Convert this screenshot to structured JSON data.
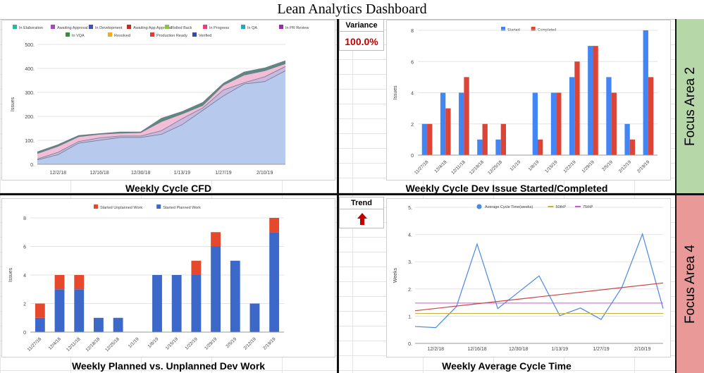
{
  "dashboard_title": "Lean Analytics Dashboard",
  "colors": {
    "blue": "#4285f4",
    "red": "#db4437",
    "dark_blue": "#3c68c9",
    "orange_red": "#e5482a",
    "focus2_bg": "#b6d7a8",
    "focus4_bg": "#ea9999",
    "kpi_red": "#c00000"
  },
  "focus_areas": {
    "top": "Focus Area 2",
    "bottom": "Focus Area 4"
  },
  "variance": {
    "label": "Variance",
    "value": "100.0%"
  },
  "trend": {
    "label": "Trend",
    "icon": "arrow-up-icon"
  },
  "captions": {
    "cfd": "Weekly Cycle CFD",
    "started_completed": "Weekly Cycle Dev Issue Started/Completed",
    "planned_unplanned": "Weekly Planned vs. Unplanned Dev Work",
    "cycle_time": "Weekly Average Cycle Time"
  },
  "chart_data": [
    {
      "id": "cfd",
      "type": "area",
      "title": "",
      "ylabel": "Issues",
      "ylim": [
        0,
        500
      ],
      "yticks": [
        0,
        100,
        200,
        300,
        400,
        500
      ],
      "ytick_labels": [
        "0.",
        "100.",
        "200.",
        "300.",
        "400.",
        "500."
      ],
      "x": [
        "11/25/18",
        "12/2/18",
        "12/9/18",
        "12/16/18",
        "12/23/18",
        "12/30/18",
        "1/6/19",
        "1/13/19",
        "1/20/19",
        "1/27/19",
        "2/3/19",
        "2/10/19",
        "2/17/19"
      ],
      "xtick_labels": [
        "12/2/18",
        "12/16/18",
        "12/30/18",
        "1/13/19",
        "1/27/19",
        "2/10/19"
      ],
      "legend": [
        "In Elaboration",
        "Awaiting Approval",
        "In Development",
        "Awaiting App Approval",
        "Rolled Back",
        "In Progress",
        "In QA",
        "In PR Review",
        "In VQA",
        "Resolved",
        "Production Ready",
        "Verified"
      ],
      "legend_colors": [
        "#2bb5a0",
        "#ab47bc",
        "#3f51b5",
        "#c62828",
        "#8bc34a",
        "#ec407a",
        "#26a6c6",
        "#9c27b0",
        "#388e3c",
        "#f9a825",
        "#e53935",
        "#3949ab"
      ],
      "series": [
        {
          "name": "Verified",
          "color": "#b7c9ec",
          "values": [
            18,
            40,
            88,
            100,
            112,
            112,
            125,
            165,
            225,
            285,
            335,
            345,
            390
          ]
        },
        {
          "name": "Production Ready",
          "color": "#c9b8e0",
          "values": [
            22,
            50,
            95,
            110,
            118,
            118,
            140,
            190,
            235,
            310,
            340,
            365,
            408
          ]
        },
        {
          "name": "In Progress",
          "color": "#f2bdd6",
          "values": [
            45,
            75,
            115,
            125,
            130,
            132,
            178,
            210,
            245,
            330,
            372,
            390,
            420
          ]
        },
        {
          "name": "In Elaboration",
          "color": "#5c8a7e",
          "values": [
            52,
            82,
            120,
            128,
            135,
            135,
            192,
            220,
            258,
            338,
            385,
            402,
            432
          ]
        }
      ]
    },
    {
      "id": "started_completed",
      "type": "bar",
      "title": "",
      "ylabel": "Issues",
      "ylim": [
        0,
        8
      ],
      "yticks": [
        0,
        2,
        4,
        6,
        8
      ],
      "categories": [
        "11/27/18",
        "12/4/18",
        "12/11/18",
        "12/18/18",
        "12/25/18",
        "1/1/19",
        "1/8/19",
        "1/15/19",
        "1/22/19",
        "1/29/19",
        "2/5/19",
        "2/12/19",
        "2/19/19"
      ],
      "series": [
        {
          "name": "Started",
          "color": "#4285f4",
          "values": [
            2,
            4,
            4,
            1,
            1,
            0,
            4,
            4,
            5,
            7,
            5,
            2,
            8
          ]
        },
        {
          "name": "Completed",
          "color": "#db4437",
          "values": [
            2,
            3,
            5,
            2,
            2,
            0,
            1,
            4,
            6,
            7,
            4,
            1,
            5
          ]
        }
      ]
    },
    {
      "id": "planned_unplanned",
      "type": "bar",
      "stacked": true,
      "title": "",
      "ylabel": "Issues",
      "ylim": [
        0,
        8
      ],
      "yticks": [
        0,
        2,
        4,
        6,
        8
      ],
      "categories": [
        "11/27/18",
        "12/4/18",
        "12/11/18",
        "12/18/18",
        "12/25/18",
        "1/1/19",
        "1/8/19",
        "1/15/19",
        "1/22/19",
        "1/29/19",
        "2/5/19",
        "2/12/19",
        "2/19/19"
      ],
      "series": [
        {
          "name": "Started Planned Work",
          "color": "#3c68c9",
          "values": [
            1,
            3,
            3,
            1,
            1,
            0,
            4,
            4,
            4,
            6,
            5,
            2,
            7
          ]
        },
        {
          "name": "Started Unplanned Work",
          "color": "#e5482a",
          "values": [
            1,
            1,
            1,
            0,
            0,
            0,
            0,
            0,
            1,
            1,
            0,
            0,
            1
          ]
        }
      ]
    },
    {
      "id": "cycle_time",
      "type": "line",
      "title": "",
      "ylabel": "Weeks",
      "ylim": [
        0,
        5
      ],
      "yticks": [
        0,
        1,
        2,
        3,
        4,
        5
      ],
      "ytick_labels": [
        "0.",
        "1.",
        "2.",
        "3.",
        "4.",
        "5."
      ],
      "x": [
        "11/25/18",
        "12/2/18",
        "12/9/18",
        "12/16/18",
        "12/23/18",
        "12/30/18",
        "1/6/19",
        "1/13/19",
        "1/20/19",
        "1/27/19",
        "2/3/19",
        "2/10/19",
        "2/17/19"
      ],
      "xtick_labels": [
        "12/2/18",
        "12/16/18",
        "12/30/18",
        "1/13/19",
        "1/27/19",
        "2/10/19"
      ],
      "series": [
        {
          "name": "Average Cycle Time(weeks)",
          "color": "#4a86e8",
          "values": [
            0.62,
            0.58,
            1.35,
            3.65,
            1.28,
            1.88,
            2.48,
            1.02,
            1.3,
            0.88,
            2.05,
            4.02,
            1.28
          ]
        },
        {
          "name": "50thP",
          "color": "#c6b23a",
          "constant": 1.1
        },
        {
          "name": "75thP",
          "color": "#d252e0",
          "constant": 1.48
        },
        {
          "name": "",
          "color": "#cc4444",
          "trend": [
            1.2,
            2.22
          ]
        }
      ]
    }
  ]
}
